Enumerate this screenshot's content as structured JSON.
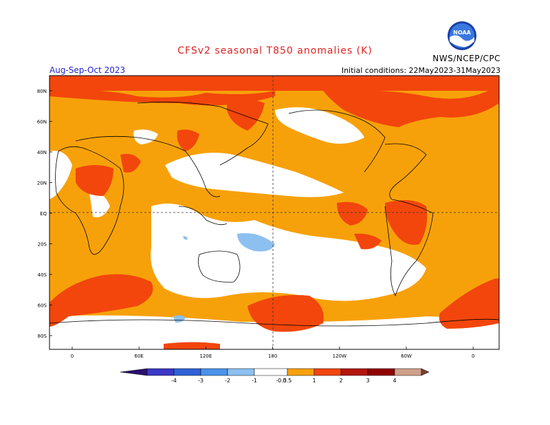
{
  "title": "CFSv2 seasonal T850 anomalies (K)",
  "season": "Aug-Sep-Oct 2023",
  "initial_conditions": "Initial conditions: 22May2023-31May2023",
  "organization": "NWS/NCEP/CPC",
  "logo_text": "NOAA",
  "lat_labels": [
    "80N",
    "60N",
    "40N",
    "20N",
    "EQ",
    "20S",
    "40S",
    "60S",
    "80S"
  ],
  "lon_labels": [
    "0",
    "60E",
    "120E",
    "180",
    "120W",
    "60W",
    "0"
  ],
  "colorbar": {
    "labels": [
      "-4",
      "-3",
      "-2",
      "-1",
      "-0.5",
      "0.5",
      "1",
      "2",
      "3",
      "4"
    ],
    "colors": {
      "lt_minus4": "#2a0f6e",
      "m4_m3": "#3c37c6",
      "m3_m2": "#2f62d6",
      "m2_m1": "#4a93e8",
      "m1_m05": "#8cc0f0",
      "m05_05": "#ffffff",
      "p05_1": "#f7a10a",
      "p1_2": "#f2460c",
      "p2_3": "#b2160b",
      "p3_4": "#8f0000",
      "p4_5": "#cfa08a",
      "gt5": "#7a4035"
    }
  }
}
